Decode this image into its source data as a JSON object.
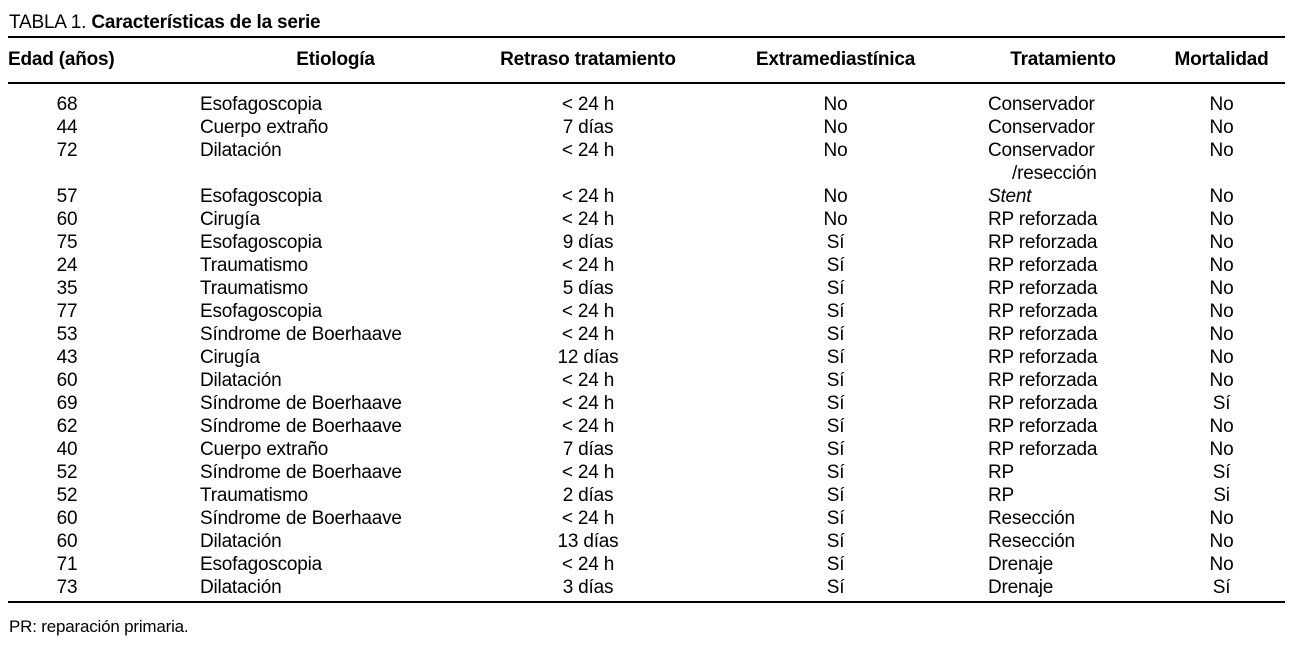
{
  "title": {
    "prefix": "TABLA 1. ",
    "text": "Características de la serie"
  },
  "table": {
    "columns": [
      "Edad (años)",
      "Etiología",
      "Retraso tratamiento",
      "Extramediastínica",
      "Tratamiento",
      "Mortalidad"
    ],
    "rows": [
      {
        "edad": "68",
        "etiologia": "Esofagoscopia",
        "retraso": "< 24 h",
        "extra": "No",
        "tratamiento": "Conservador",
        "mortalidad": "No"
      },
      {
        "edad": "44",
        "etiologia": "Cuerpo extraño",
        "retraso": "7 días",
        "extra": "No",
        "tratamiento": "Conservador",
        "mortalidad": "No"
      },
      {
        "edad": "72",
        "etiologia": "Dilatación",
        "retraso": "< 24 h",
        "extra": "No",
        "tratamiento": "Conservador\n/resección",
        "mortalidad": "No"
      },
      {
        "edad": "57",
        "etiologia": "Esofagoscopia",
        "retraso": "< 24 h",
        "extra": "No",
        "tratamiento": "Stent",
        "tratamiento_italic": true,
        "mortalidad": "No"
      },
      {
        "edad": "60",
        "etiologia": "Cirugía",
        "retraso": "< 24 h",
        "extra": "No",
        "tratamiento": "RP reforzada",
        "mortalidad": "No"
      },
      {
        "edad": "75",
        "etiologia": "Esofagoscopia",
        "retraso": "9 días",
        "extra": "Sí",
        "tratamiento": "RP reforzada",
        "mortalidad": "No"
      },
      {
        "edad": "24",
        "etiologia": "Traumatismo",
        "retraso": "< 24 h",
        "extra": "Sí",
        "tratamiento": "RP reforzada",
        "mortalidad": "No"
      },
      {
        "edad": "35",
        "etiologia": "Traumatismo",
        "retraso": "5 días",
        "extra": "Sí",
        "tratamiento": "RP reforzada",
        "mortalidad": "No"
      },
      {
        "edad": "77",
        "etiologia": "Esofagoscopia",
        "retraso": "< 24 h",
        "extra": "Sí",
        "tratamiento": "RP reforzada",
        "mortalidad": "No"
      },
      {
        "edad": "53",
        "etiologia": "Síndrome de Boerhaave",
        "retraso": "< 24 h",
        "extra": "Sí",
        "tratamiento": "RP reforzada",
        "mortalidad": "No"
      },
      {
        "edad": "43",
        "etiologia": "Cirugía",
        "retraso": "12 días",
        "extra": "Sí",
        "tratamiento": "RP reforzada",
        "mortalidad": "No"
      },
      {
        "edad": "60",
        "etiologia": "Dilatación",
        "retraso": "< 24 h",
        "extra": "Sí",
        "tratamiento": "RP reforzada",
        "mortalidad": "No"
      },
      {
        "edad": "69",
        "etiologia": "Síndrome de Boerhaave",
        "retraso": "< 24 h",
        "extra": "Sí",
        "tratamiento": "RP reforzada",
        "mortalidad": "Sí"
      },
      {
        "edad": "62",
        "etiologia": "Síndrome de Boerhaave",
        "retraso": "< 24 h",
        "extra": "Sí",
        "tratamiento": "RP reforzada",
        "mortalidad": "No"
      },
      {
        "edad": "40",
        "etiologia": "Cuerpo extraño",
        "retraso": "7 días",
        "extra": "Sí",
        "tratamiento": "RP reforzada",
        "mortalidad": "No"
      },
      {
        "edad": "52",
        "etiologia": "Síndrome de Boerhaave",
        "retraso": "< 24 h",
        "extra": "Sí",
        "tratamiento": "RP",
        "mortalidad": "Sí"
      },
      {
        "edad": "52",
        "etiologia": "Traumatismo",
        "retraso": "2 días",
        "extra": "Sí",
        "tratamiento": "RP",
        "mortalidad": "Si"
      },
      {
        "edad": "60",
        "etiologia": "Síndrome de Boerhaave",
        "retraso": "< 24 h",
        "extra": "Sí",
        "tratamiento": "Resección",
        "mortalidad": "No"
      },
      {
        "edad": "60",
        "etiologia": "Dilatación",
        "retraso": "13 días",
        "extra": "Sí",
        "tratamiento": "Resección",
        "mortalidad": "No"
      },
      {
        "edad": "71",
        "etiologia": "Esofagoscopia",
        "retraso": "< 24 h",
        "extra": "Sí",
        "tratamiento": "Drenaje",
        "mortalidad": "No"
      },
      {
        "edad": "73",
        "etiologia": "Dilatación",
        "retraso": "3 días",
        "extra": "Sí",
        "tratamiento": "Drenaje",
        "mortalidad": "Sí"
      }
    ]
  },
  "footnote": "PR: reparación primaria."
}
